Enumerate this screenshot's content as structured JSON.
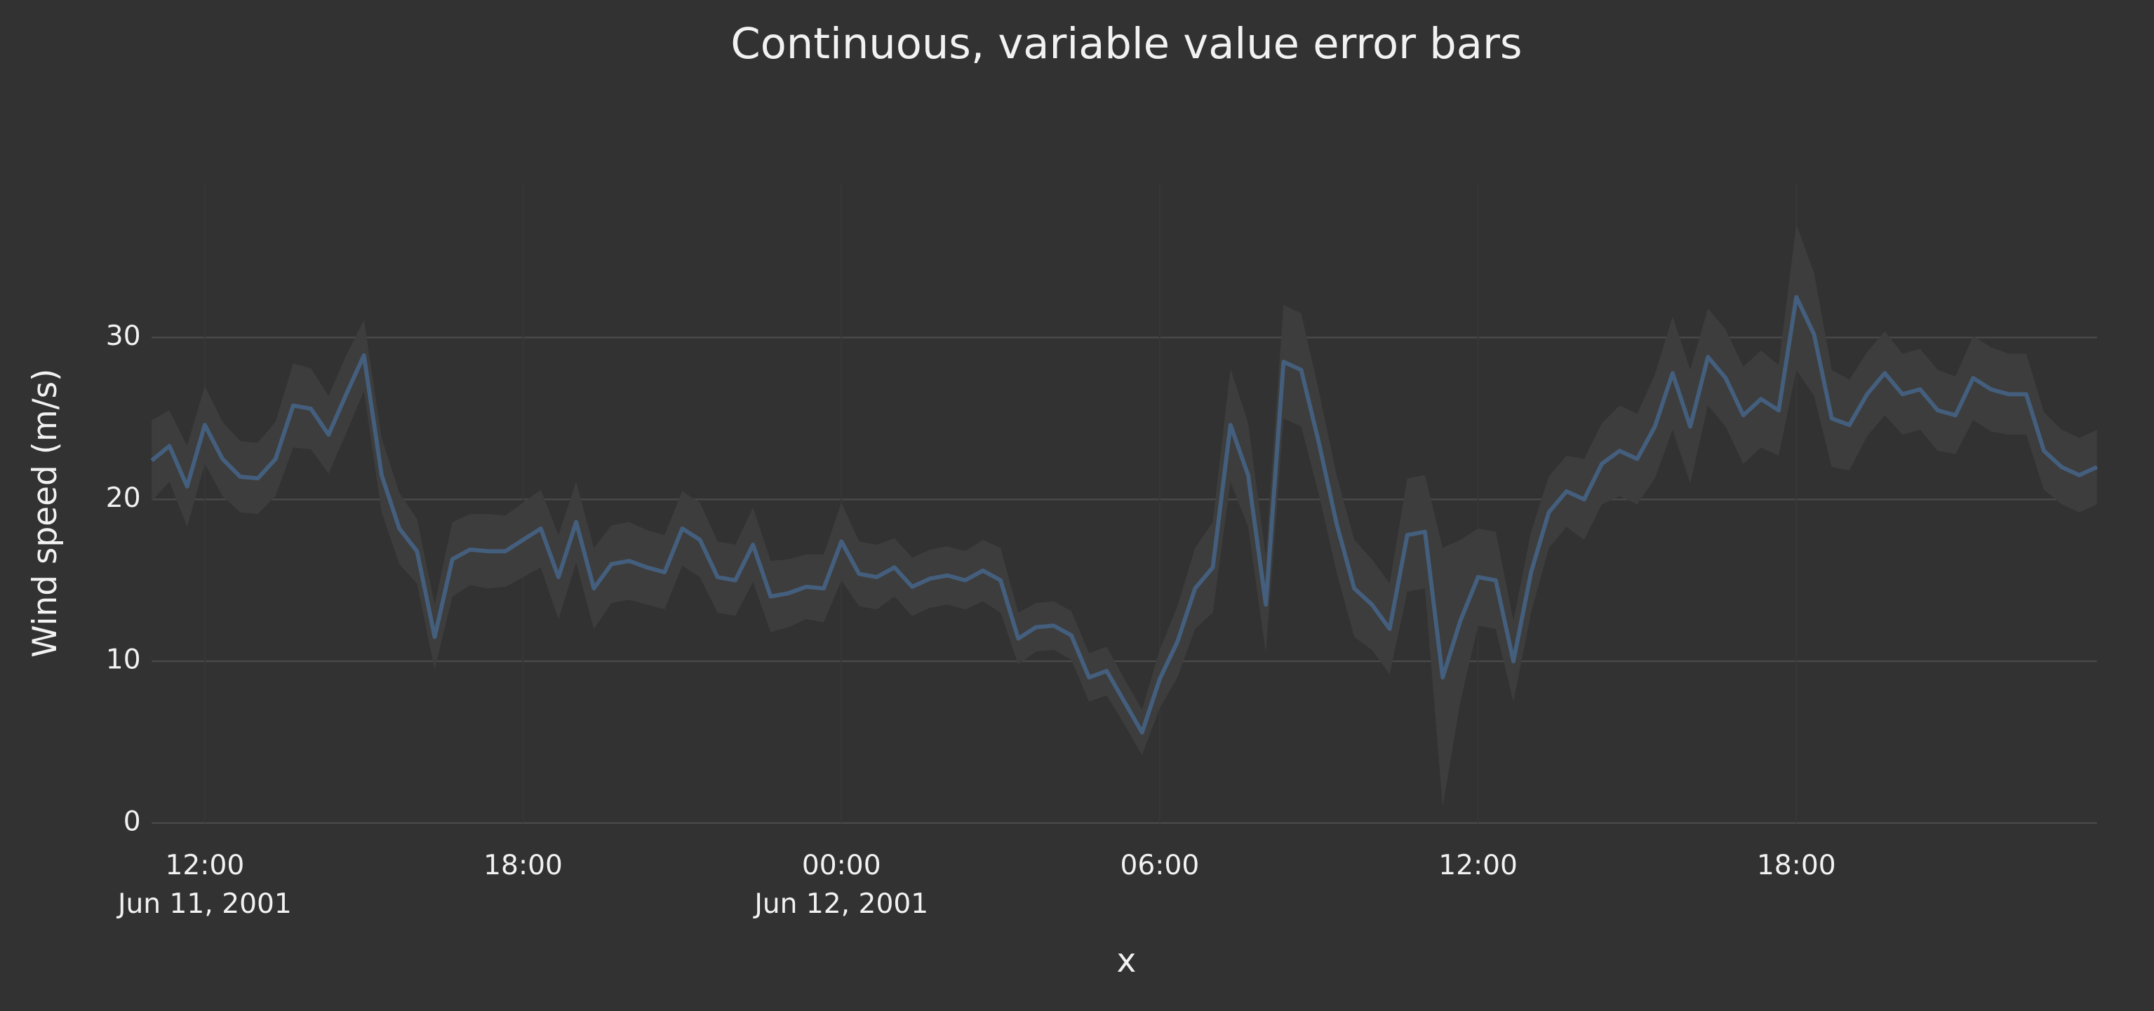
{
  "chart_data": {
    "type": "line-band",
    "title": "Continuous, variable value error bars",
    "x_label": "x",
    "y_label": "Wind speed (m/s)",
    "grid": true,
    "xlim": [
      "2001-06-11 11:00",
      "2001-06-12 23:40"
    ],
    "xticks": [
      {
        "value": "2001-06-11 12:00",
        "label": "12:00",
        "date_label": "Jun 11, 2001"
      },
      {
        "value": "2001-06-11 18:00",
        "label": "18:00"
      },
      {
        "value": "2001-06-12 00:00",
        "label": "00:00",
        "date_label": "Jun 12, 2001"
      },
      {
        "value": "2001-06-12 06:00",
        "label": "06:00"
      },
      {
        "value": "2001-06-12 12:00",
        "label": "12:00"
      },
      {
        "value": "2001-06-12 18:00",
        "label": "18:00"
      }
    ],
    "ylim": [
      0,
      39.5
    ],
    "yticks": [
      0,
      10,
      20,
      30
    ],
    "x": [
      "2001-06-11 11:00",
      "2001-06-11 11:20",
      "2001-06-11 11:40",
      "2001-06-11 12:00",
      "2001-06-11 12:20",
      "2001-06-11 12:40",
      "2001-06-11 13:00",
      "2001-06-11 13:20",
      "2001-06-11 13:40",
      "2001-06-11 14:00",
      "2001-06-11 14:20",
      "2001-06-11 14:40",
      "2001-06-11 15:00",
      "2001-06-11 15:20",
      "2001-06-11 15:40",
      "2001-06-11 16:00",
      "2001-06-11 16:20",
      "2001-06-11 16:40",
      "2001-06-11 17:00",
      "2001-06-11 17:20",
      "2001-06-11 17:40",
      "2001-06-11 18:00",
      "2001-06-11 18:20",
      "2001-06-11 18:40",
      "2001-06-11 19:00",
      "2001-06-11 19:20",
      "2001-06-11 19:40",
      "2001-06-11 20:00",
      "2001-06-11 20:20",
      "2001-06-11 20:40",
      "2001-06-11 21:00",
      "2001-06-11 21:20",
      "2001-06-11 21:40",
      "2001-06-11 22:00",
      "2001-06-11 22:20",
      "2001-06-11 22:40",
      "2001-06-11 23:00",
      "2001-06-11 23:20",
      "2001-06-11 23:40",
      "2001-06-12 00:00",
      "2001-06-12 00:20",
      "2001-06-12 00:40",
      "2001-06-12 01:00",
      "2001-06-12 01:20",
      "2001-06-12 01:40",
      "2001-06-12 02:00",
      "2001-06-12 02:20",
      "2001-06-12 02:40",
      "2001-06-12 03:00",
      "2001-06-12 03:20",
      "2001-06-12 03:40",
      "2001-06-12 04:00",
      "2001-06-12 04:20",
      "2001-06-12 04:40",
      "2001-06-12 05:00",
      "2001-06-12 05:20",
      "2001-06-12 05:40",
      "2001-06-12 06:00",
      "2001-06-12 06:20",
      "2001-06-12 06:40",
      "2001-06-12 07:00",
      "2001-06-12 07:20",
      "2001-06-12 07:40",
      "2001-06-12 08:00",
      "2001-06-12 08:20",
      "2001-06-12 08:40",
      "2001-06-12 09:00",
      "2001-06-12 09:20",
      "2001-06-12 09:40",
      "2001-06-12 10:00",
      "2001-06-12 10:20",
      "2001-06-12 10:40",
      "2001-06-12 11:00",
      "2001-06-12 11:20",
      "2001-06-12 11:40",
      "2001-06-12 12:00",
      "2001-06-12 12:20",
      "2001-06-12 12:40",
      "2001-06-12 13:00",
      "2001-06-12 13:20",
      "2001-06-12 13:40",
      "2001-06-12 14:00",
      "2001-06-12 14:20",
      "2001-06-12 14:40",
      "2001-06-12 15:00",
      "2001-06-12 15:20",
      "2001-06-12 15:40",
      "2001-06-12 16:00",
      "2001-06-12 16:20",
      "2001-06-12 16:40",
      "2001-06-12 17:00",
      "2001-06-12 17:20",
      "2001-06-12 17:40",
      "2001-06-12 18:00",
      "2001-06-12 18:20",
      "2001-06-12 18:40",
      "2001-06-12 19:00",
      "2001-06-12 19:20",
      "2001-06-12 19:40",
      "2001-06-12 20:00",
      "2001-06-12 20:20",
      "2001-06-12 20:40",
      "2001-06-12 21:00",
      "2001-06-12 21:20",
      "2001-06-12 21:40",
      "2001-06-12 22:00",
      "2001-06-12 22:20",
      "2001-06-12 22:40",
      "2001-06-12 23:00",
      "2001-06-12 23:20",
      "2001-06-12 23:40"
    ],
    "series": [
      {
        "color": "#445f7e",
        "band_color": "#3d3d3d",
        "values": [
          22.4,
          23.3,
          20.8,
          24.6,
          22.5,
          21.4,
          21.3,
          22.5,
          25.8,
          25.6,
          24.0,
          26.5,
          28.9,
          21.5,
          18.2,
          16.8,
          11.5,
          16.3,
          16.9,
          16.8,
          16.8,
          17.5,
          18.2,
          15.2,
          18.6,
          14.5,
          16.0,
          16.2,
          15.8,
          15.5,
          18.2,
          17.5,
          15.2,
          15.0,
          17.2,
          14.0,
          14.2,
          14.6,
          14.5,
          17.4,
          15.4,
          15.2,
          15.8,
          14.6,
          15.1,
          15.3,
          15.0,
          15.6,
          15.0,
          11.4,
          12.1,
          12.2,
          11.6,
          9.0,
          9.4,
          7.5,
          5.6,
          8.9,
          11.2,
          14.5,
          15.8,
          24.6,
          21.5,
          13.5,
          28.5,
          28.0,
          23.5,
          18.5,
          14.5,
          13.5,
          12.0,
          17.8,
          18.0,
          9.0,
          12.5,
          15.2,
          15.0,
          10.0,
          15.5,
          19.2,
          20.5,
          20.0,
          22.2,
          23.0,
          22.5,
          24.5,
          27.8,
          24.5,
          28.8,
          27.5,
          25.2,
          26.2,
          25.5,
          32.5,
          30.2,
          25.0,
          24.6,
          26.5,
          27.8,
          26.5,
          26.8,
          25.5,
          25.2,
          27.5,
          26.8,
          26.5,
          26.5,
          23.0,
          22.0,
          21.5,
          22.0
        ],
        "errors": [
          2.5,
          2.2,
          2.5,
          2.4,
          2.3,
          2.2,
          2.2,
          2.3,
          2.6,
          2.5,
          2.4,
          2.4,
          2.2,
          2.3,
          2.2,
          2.0,
          2.0,
          2.3,
          2.2,
          2.3,
          2.2,
          2.3,
          2.4,
          2.6,
          2.5,
          2.5,
          2.4,
          2.4,
          2.3,
          2.3,
          2.3,
          2.3,
          2.2,
          2.2,
          2.3,
          2.2,
          2.1,
          2.0,
          2.1,
          2.4,
          2.0,
          2.0,
          1.8,
          1.8,
          1.8,
          1.8,
          1.8,
          1.9,
          2.0,
          1.6,
          1.5,
          1.5,
          1.5,
          1.5,
          1.5,
          1.4,
          1.4,
          1.8,
          2.2,
          2.5,
          2.8,
          3.5,
          3.2,
          3.0,
          3.5,
          3.5,
          3.2,
          3.0,
          3.0,
          2.8,
          2.8,
          3.5,
          3.5,
          8.0,
          5.0,
          3.0,
          3.0,
          2.5,
          2.5,
          2.2,
          2.2,
          2.5,
          2.5,
          2.8,
          2.8,
          3.2,
          3.5,
          3.5,
          3.0,
          3.0,
          3.0,
          3.0,
          2.8,
          4.5,
          3.8,
          3.0,
          2.8,
          2.6,
          2.6,
          2.5,
          2.5,
          2.5,
          2.4,
          2.6,
          2.6,
          2.5,
          2.5,
          2.4,
          2.3,
          2.3,
          2.3
        ]
      }
    ]
  }
}
